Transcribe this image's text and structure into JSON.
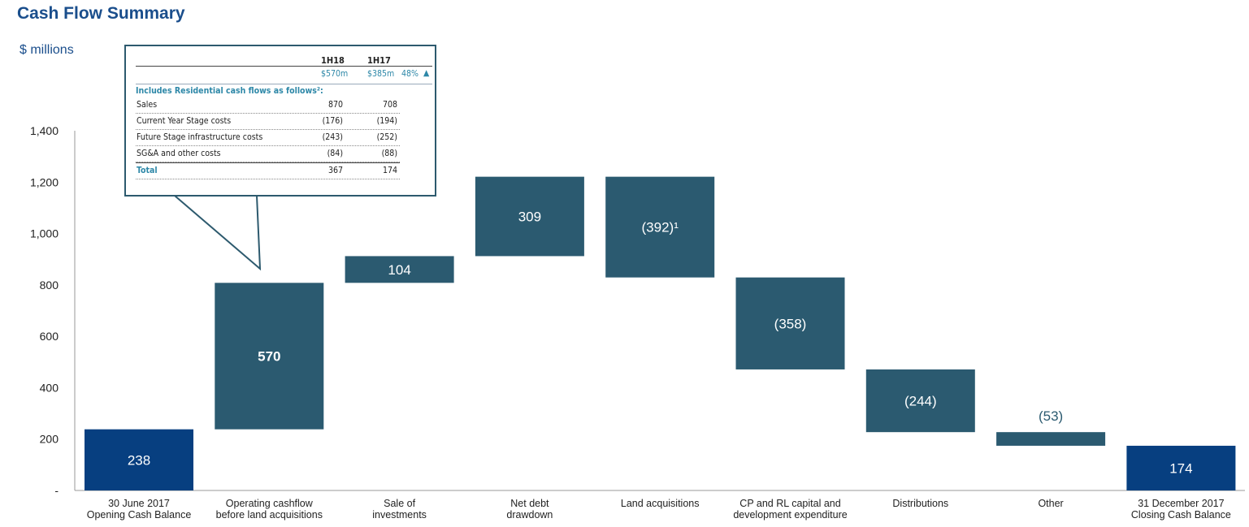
{
  "title": "Cash Flow Summary",
  "units": "$ millions",
  "colors": {
    "endpoint": "#073f80",
    "step": "#2b5a70"
  },
  "chart_data": {
    "type": "waterfall",
    "ylim": [
      0,
      1400
    ],
    "yticks": [
      {
        "value": 0,
        "label": "-"
      },
      {
        "value": 200,
        "label": "200"
      },
      {
        "value": 400,
        "label": "400"
      },
      {
        "value": 600,
        "label": "600"
      },
      {
        "value": 800,
        "label": "800"
      },
      {
        "value": 1000,
        "label": "1,000"
      },
      {
        "value": 1200,
        "label": "1,200"
      },
      {
        "value": 1400,
        "label": "1,400"
      }
    ],
    "bars": [
      {
        "category": [
          "30 June 2017",
          "Opening Cash Balance"
        ],
        "kind": "total",
        "start": 0,
        "end": 238,
        "label": "238"
      },
      {
        "category": [
          "Operating cashflow",
          "before land acquisitions"
        ],
        "kind": "step",
        "start": 238,
        "end": 808,
        "label": "570",
        "bold": true
      },
      {
        "category": [
          "Sale of",
          "investments"
        ],
        "kind": "step",
        "start": 808,
        "end": 912,
        "label": "104"
      },
      {
        "category": [
          "Net debt",
          "drawdown"
        ],
        "kind": "step",
        "start": 912,
        "end": 1221,
        "label": "309"
      },
      {
        "category": [
          "Land acquisitions"
        ],
        "kind": "step",
        "start": 1221,
        "end": 829,
        "label": "(392)¹"
      },
      {
        "category": [
          "CP and RL capital and",
          "development expenditure"
        ],
        "kind": "step",
        "start": 829,
        "end": 471,
        "label": "(358)"
      },
      {
        "category": [
          "Distributions"
        ],
        "kind": "step",
        "start": 471,
        "end": 227,
        "label": "(244)"
      },
      {
        "category": [
          "Other"
        ],
        "kind": "step",
        "start": 227,
        "end": 174,
        "label": "(53)",
        "label_outside": true
      },
      {
        "category": [
          "31 December 2017",
          "Closing Cash Balance"
        ],
        "kind": "total",
        "start": 0,
        "end": 174,
        "label": "174"
      }
    ]
  },
  "callout": {
    "col1": "1H18",
    "col2": "1H17",
    "sub1": "$570m",
    "sub2": "$385m",
    "change": "48%",
    "includes": "Includes Residential cash flows as follows²:",
    "rows": [
      {
        "label": "Sales",
        "v1": "870",
        "v2": "708"
      },
      {
        "label": "Current Year Stage costs",
        "v1": "(176)",
        "v2": "(194)"
      },
      {
        "label": "Future Stage infrastructure costs",
        "v1": "(243)",
        "v2": "(252)"
      },
      {
        "label": "SG&A and other costs",
        "v1": "(84)",
        "v2": "(88)"
      }
    ],
    "total": {
      "label": "Total",
      "v1": "367",
      "v2": "174"
    }
  }
}
